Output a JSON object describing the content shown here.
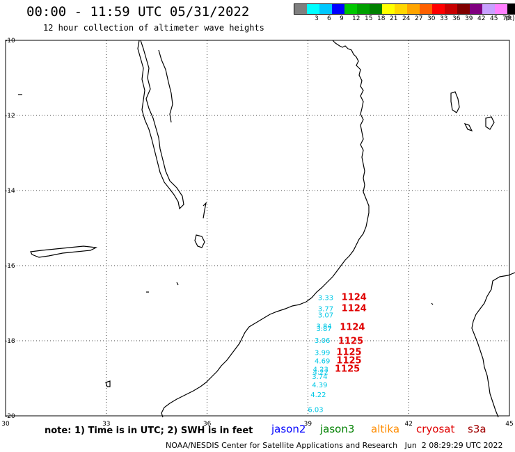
{
  "header": {
    "title": "00:00 - 11:59 UTC 05/31/2022",
    "subtitle": "12 hour collection of altimeter wave heights"
  },
  "legend": {
    "unit": "(ft)",
    "bins": [
      {
        "label": "",
        "color": "#7f7f7f"
      },
      {
        "label": "3",
        "color": "#00ffff"
      },
      {
        "label": "6",
        "color": "#00c8ff"
      },
      {
        "label": "9",
        "color": "#0000ff"
      },
      {
        "label": "12",
        "color": "#00c800"
      },
      {
        "label": "15",
        "color": "#00a000"
      },
      {
        "label": "18",
        "color": "#008000"
      },
      {
        "label": "21",
        "color": "#ffff00"
      },
      {
        "label": "24",
        "color": "#ffd700"
      },
      {
        "label": "27",
        "color": "#ffa500"
      },
      {
        "label": "30",
        "color": "#ff6000"
      },
      {
        "label": "33",
        "color": "#ff0000"
      },
      {
        "label": "36",
        "color": "#c80000"
      },
      {
        "label": "39",
        "color": "#800000"
      },
      {
        "label": "42",
        "color": "#800080"
      },
      {
        "label": "45",
        "color": "#c8a0ff"
      },
      {
        "label": "70",
        "color": "#ff80ff"
      },
      {
        "label": "",
        "color": "#000000"
      }
    ]
  },
  "map": {
    "lon_range": [
      30,
      45
    ],
    "lat_range": [
      -20,
      -10
    ],
    "lon_ticks": [
      "30",
      "33",
      "36",
      "39",
      "42",
      "45"
    ],
    "lat_ticks": [
      "-10",
      "-12",
      "-14",
      "-16",
      "-18",
      "-20"
    ],
    "swh_color": "#00c8e6",
    "time_color": "#e00000",
    "swh_readings": [
      {
        "lon": 39.3,
        "lat": -16.92,
        "text": "3.33"
      },
      {
        "lon": 39.3,
        "lat": -17.21,
        "text": "3.77"
      },
      {
        "lon": 39.3,
        "lat": -17.38,
        "text": "3.07"
      },
      {
        "lon": 39.25,
        "lat": -17.68,
        "text": "3.84"
      },
      {
        "lon": 39.25,
        "lat": -17.74,
        "text": "3.87"
      },
      {
        "lon": 39.2,
        "lat": -18.06,
        "text": "3.06"
      },
      {
        "lon": 39.2,
        "lat": -18.38,
        "text": "3.99"
      },
      {
        "lon": 39.2,
        "lat": -18.6,
        "text": "4.69"
      },
      {
        "lon": 39.15,
        "lat": -18.82,
        "text": "4.23"
      },
      {
        "lon": 39.15,
        "lat": -18.9,
        "text": "4.22"
      },
      {
        "lon": 39.12,
        "lat": -19.02,
        "text": "3.74"
      },
      {
        "lon": 39.12,
        "lat": -19.24,
        "text": "4.39"
      },
      {
        "lon": 39.08,
        "lat": -19.5,
        "text": "4.22"
      },
      {
        "lon": 39.0,
        "lat": -19.9,
        "text": "6.03"
      }
    ],
    "time_stamps": [
      {
        "lon": 40.0,
        "lat": -16.92,
        "text": "1124"
      },
      {
        "lon": 40.0,
        "lat": -17.21,
        "text": "1124"
      },
      {
        "lon": 39.95,
        "lat": -17.71,
        "text": "1124"
      },
      {
        "lon": 39.9,
        "lat": -18.08,
        "text": "1125"
      },
      {
        "lon": 39.85,
        "lat": -18.38,
        "text": "1125"
      },
      {
        "lon": 39.85,
        "lat": -18.6,
        "text": "1125"
      },
      {
        "lon": 39.8,
        "lat": -18.82,
        "text": "1125"
      }
    ]
  },
  "note": "note: 1) Time is in UTC; 2) SWH is in feet",
  "satellites": [
    {
      "name": "jason2",
      "color": "#0000ff"
    },
    {
      "name": "jason3",
      "color": "#008000"
    },
    {
      "name": "altika",
      "color": "#ff8c00"
    },
    {
      "name": "cryosat",
      "color": "#e00000"
    },
    {
      "name": "s3a",
      "color": "#a00000"
    }
  ],
  "footer": "NOAA/NESDIS Center for Satellite Applications and Research   Jun  2 08:29:29 UTC 2022"
}
